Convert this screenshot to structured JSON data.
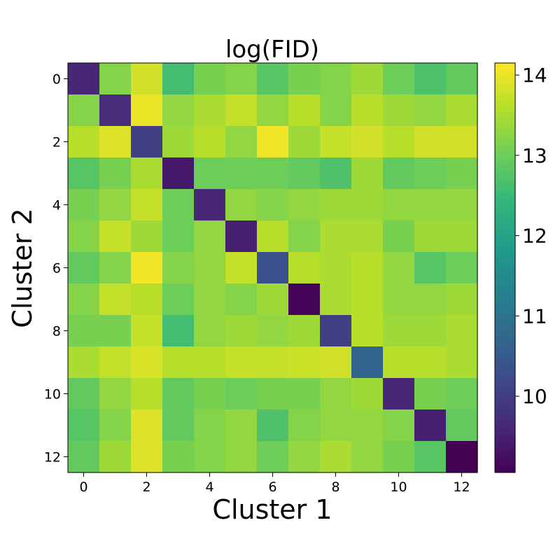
{
  "chart_data": {
    "type": "heatmap",
    "title": "log(FID)",
    "xlabel": "Cluster 1",
    "ylabel": "Cluster 2",
    "x_ticks": [
      "0",
      "2",
      "4",
      "6",
      "8",
      "10",
      "12"
    ],
    "y_ticks": [
      "0",
      "2",
      "4",
      "6",
      "8",
      "10",
      "12"
    ],
    "colorbar": {
      "ticks": [
        "10",
        "11",
        "12",
        "13",
        "14"
      ],
      "vmin": 9.05,
      "vmax": 14.15,
      "colormap": "viridis"
    },
    "values": [
      [
        9.6,
        13.2,
        13.8,
        12.6,
        13.1,
        13.2,
        12.8,
        13.1,
        13.2,
        13.4,
        13.0,
        12.7,
        12.9
      ],
      [
        13.2,
        9.7,
        14.0,
        13.3,
        13.5,
        13.7,
        13.3,
        13.6,
        13.2,
        13.6,
        13.4,
        13.3,
        13.5
      ],
      [
        13.6,
        13.9,
        10.0,
        13.4,
        13.6,
        13.3,
        14.05,
        13.4,
        13.7,
        13.8,
        13.6,
        13.8,
        13.8
      ],
      [
        12.8,
        13.1,
        13.5,
        9.4,
        13.0,
        13.0,
        13.0,
        12.9,
        12.7,
        13.4,
        12.9,
        13.0,
        13.1
      ],
      [
        13.1,
        13.3,
        13.7,
        13.0,
        9.6,
        13.3,
        13.2,
        13.3,
        13.4,
        13.4,
        13.3,
        13.3,
        13.3
      ],
      [
        13.2,
        13.7,
        13.4,
        13.0,
        13.3,
        9.5,
        13.6,
        13.2,
        13.5,
        13.5,
        13.1,
        13.4,
        13.4
      ],
      [
        12.9,
        13.2,
        14.05,
        13.2,
        13.3,
        13.7,
        10.3,
        13.6,
        13.5,
        13.6,
        13.3,
        12.8,
        13.0
      ],
      [
        13.2,
        13.7,
        13.6,
        13.0,
        13.3,
        13.2,
        13.4,
        9.1,
        13.5,
        13.6,
        13.3,
        13.3,
        13.4
      ],
      [
        13.1,
        13.1,
        13.7,
        12.6,
        13.3,
        13.4,
        13.3,
        13.4,
        10.0,
        13.6,
        13.4,
        13.4,
        13.5
      ],
      [
        13.5,
        13.7,
        13.85,
        13.6,
        13.6,
        13.7,
        13.7,
        13.75,
        13.8,
        10.7,
        13.6,
        13.6,
        13.5
      ],
      [
        12.9,
        13.3,
        13.6,
        12.9,
        13.1,
        13.0,
        13.1,
        13.1,
        13.3,
        13.4,
        9.6,
        13.1,
        13.0
      ],
      [
        12.8,
        13.2,
        13.9,
        12.9,
        13.2,
        13.3,
        12.7,
        13.2,
        13.3,
        13.3,
        13.2,
        9.5,
        12.9
      ],
      [
        12.9,
        13.4,
        13.9,
        13.1,
        13.2,
        13.3,
        13.0,
        13.3,
        13.5,
        13.3,
        13.1,
        12.8,
        9.05
      ]
    ]
  }
}
